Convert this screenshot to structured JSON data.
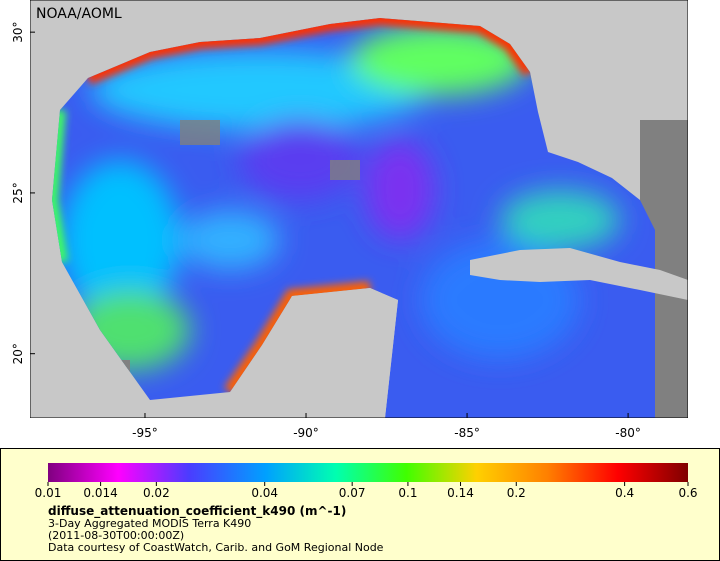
{
  "map": {
    "watermark": "NOAA/AOML",
    "lon_range": [
      -98.57,
      -78.14
    ],
    "lat_range": [
      18.0,
      31.0
    ],
    "lon_ticks": [
      {
        "value": -95,
        "label": "-95°"
      },
      {
        "value": -90,
        "label": "-90°"
      },
      {
        "value": -85,
        "label": "-85°"
      },
      {
        "value": -80,
        "label": "-80°"
      }
    ],
    "lat_ticks": [
      {
        "value": 20,
        "label": "20°"
      },
      {
        "value": 25,
        "label": "25°"
      },
      {
        "value": 30,
        "label": "30°"
      }
    ]
  },
  "legend": {
    "scale": "log",
    "range": [
      0.01,
      0.6
    ],
    "ticks": [
      0.01,
      0.014,
      0.02,
      0.04,
      0.07,
      0.1,
      0.14,
      0.2,
      0.4,
      0.6
    ],
    "variable": "diffuse_attenuation_coefficient_k490 (m^-1)",
    "description": "3-Day Aggregated MODIS Terra K490",
    "time": "(2011-08-30T00:00:00Z)",
    "credit": "Data courtesy of CoastWatch, Carib. and GoM Regional Node"
  }
}
